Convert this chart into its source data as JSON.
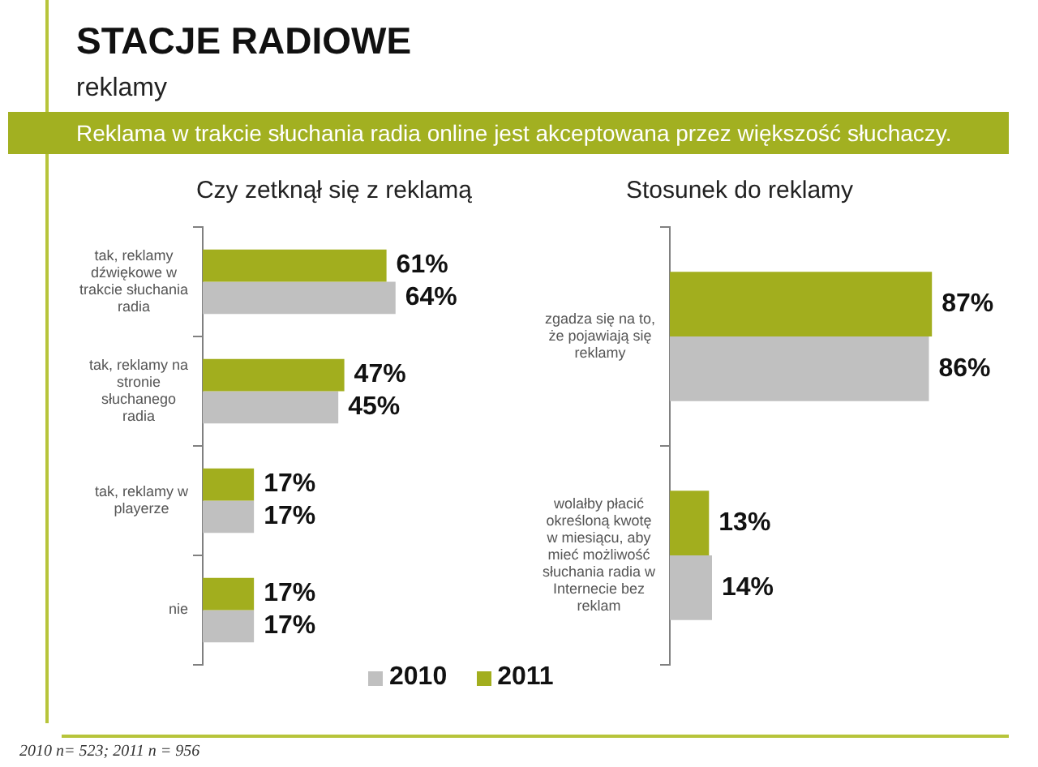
{
  "chart_data": [
    {
      "type": "bar",
      "orientation": "horizontal",
      "title": "Czy zetknął się z reklamą",
      "categories": [
        "tak, reklamy dźwiękowe w trakcie słuchania radia",
        "tak, reklamy na stronie słuchanego radia",
        "tak, reklamy w playerze",
        "nie"
      ],
      "series": [
        {
          "name": "2011",
          "color": "#a2ae1e",
          "values": [
            61,
            47,
            17,
            17
          ],
          "value_labels": [
            "61%",
            "47%",
            "17%",
            "17%"
          ]
        },
        {
          "name": "2010",
          "color": "#c0c0c0",
          "values": [
            64,
            45,
            17,
            17
          ],
          "value_labels": [
            "64%",
            "45%",
            "17%",
            "17%"
          ]
        }
      ],
      "legend": "bottom",
      "tick_labels": "y",
      "annotations": [
        "STACJE RADIOWE",
        "reklamy",
        "Reklama w trakcie słuchania radia online jest akceptowana przez większość słuchaczy.",
        "2010  n= 523; 2011  n = 956"
      ]
    },
    {
      "type": "bar",
      "orientation": "horizontal",
      "title": "Stosunek do reklamy",
      "categories": [
        "zgadza się na to, że pojawiają się reklamy",
        "wolałby płacić określoną kwotę w miesiącu, aby mieć możliwość słuchania radia w Internecie bez reklam"
      ],
      "series": [
        {
          "color": "#a2ae1e",
          "values": [
            87,
            13
          ],
          "value_labels": [
            "87%",
            "13%"
          ]
        },
        {
          "color": "#c0c0c0",
          "values": [
            86,
            14
          ],
          "value_labels": [
            "86%",
            "14%"
          ]
        }
      ],
      "tick_labels": "y"
    }
  ]
}
